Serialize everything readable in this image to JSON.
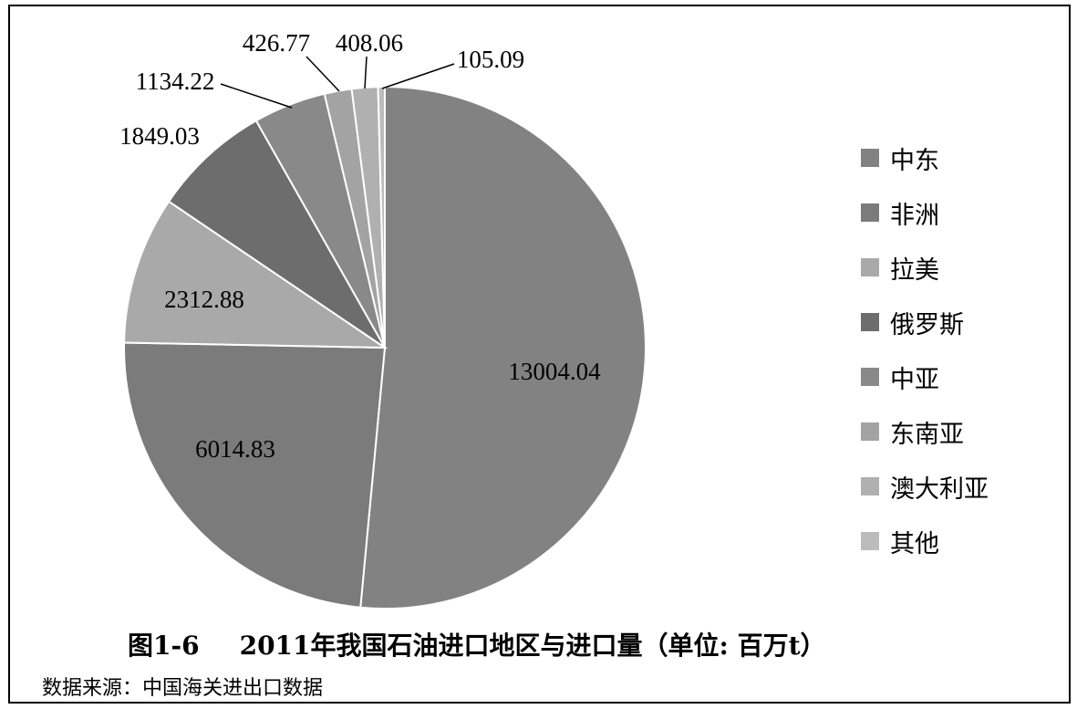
{
  "chart_data": {
    "type": "pie",
    "categories": [
      "中东",
      "非洲",
      "拉美",
      "俄罗斯",
      "中亚",
      "东南亚",
      "澳大利亚",
      "其他"
    ],
    "values": [
      13004.04,
      6014.83,
      2312.88,
      1849.03,
      1134.22,
      426.77,
      408.06,
      105.09
    ],
    "data_labels": [
      "13004.04",
      "6014.83",
      "2312.88",
      "1849.03",
      "1134.22",
      "426.77",
      "408.06",
      "105.09"
    ],
    "colors": [
      "#828282",
      "#7b7b7b",
      "#a9a9a9",
      "#6d6d6d",
      "#898989",
      "#a3a3a3",
      "#b0b0b0",
      "#bcbcbc"
    ],
    "legend_position": "right",
    "start_angle_deg": 0,
    "direction": "clockwise"
  },
  "caption": {
    "figure_no": "图1-6",
    "title": "2011年我国石油进口地区与进口量（单位: 百万t）"
  },
  "source_note": "数据来源：中国海关进出口数据"
}
